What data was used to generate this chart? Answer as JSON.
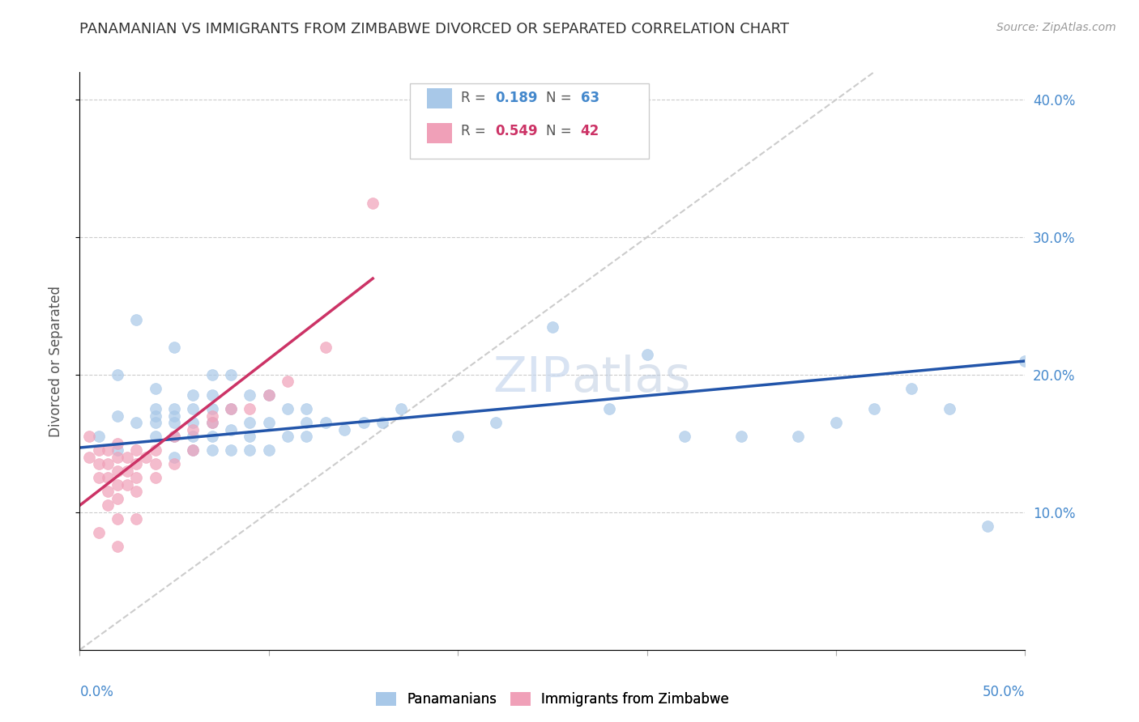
{
  "title": "PANAMANIAN VS IMMIGRANTS FROM ZIMBABWE DIVORCED OR SEPARATED CORRELATION CHART",
  "source": "Source: ZipAtlas.com",
  "ylabel": "Divorced or Separated",
  "blue_color": "#a8c8e8",
  "pink_color": "#f0a0b8",
  "blue_line_color": "#2255aa",
  "pink_line_color": "#cc3366",
  "diag_line_color": "#cccccc",
  "xlim": [
    0.0,
    0.5
  ],
  "ylim": [
    0.0,
    0.42
  ],
  "yticks": [
    0.1,
    0.2,
    0.3,
    0.4
  ],
  "ytick_labels": [
    "10.0%",
    "20.0%",
    "30.0%",
    "40.0%"
  ],
  "xtick_labels": [
    "0.0%",
    "50.0%"
  ],
  "legend_r_blue": "0.189",
  "legend_n_blue": "63",
  "legend_r_pink": "0.549",
  "legend_n_pink": "42",
  "blue_scatter_x": [
    0.01,
    0.02,
    0.02,
    0.02,
    0.03,
    0.03,
    0.04,
    0.04,
    0.04,
    0.04,
    0.04,
    0.05,
    0.05,
    0.05,
    0.05,
    0.05,
    0.05,
    0.06,
    0.06,
    0.06,
    0.06,
    0.06,
    0.07,
    0.07,
    0.07,
    0.07,
    0.07,
    0.07,
    0.08,
    0.08,
    0.08,
    0.08,
    0.09,
    0.09,
    0.09,
    0.09,
    0.1,
    0.1,
    0.1,
    0.11,
    0.11,
    0.12,
    0.12,
    0.12,
    0.13,
    0.14,
    0.15,
    0.16,
    0.17,
    0.2,
    0.22,
    0.25,
    0.28,
    0.3,
    0.32,
    0.35,
    0.38,
    0.4,
    0.42,
    0.44,
    0.46,
    0.48,
    0.5
  ],
  "blue_scatter_y": [
    0.155,
    0.145,
    0.17,
    0.2,
    0.165,
    0.24,
    0.155,
    0.165,
    0.17,
    0.175,
    0.19,
    0.14,
    0.155,
    0.165,
    0.17,
    0.175,
    0.22,
    0.145,
    0.155,
    0.165,
    0.175,
    0.185,
    0.145,
    0.155,
    0.165,
    0.175,
    0.185,
    0.2,
    0.145,
    0.16,
    0.175,
    0.2,
    0.145,
    0.155,
    0.165,
    0.185,
    0.145,
    0.165,
    0.185,
    0.155,
    0.175,
    0.155,
    0.165,
    0.175,
    0.165,
    0.16,
    0.165,
    0.165,
    0.175,
    0.155,
    0.165,
    0.235,
    0.175,
    0.215,
    0.155,
    0.155,
    0.155,
    0.165,
    0.175,
    0.19,
    0.175,
    0.09,
    0.21
  ],
  "pink_scatter_x": [
    0.005,
    0.005,
    0.01,
    0.01,
    0.01,
    0.01,
    0.015,
    0.015,
    0.015,
    0.015,
    0.015,
    0.02,
    0.02,
    0.02,
    0.02,
    0.02,
    0.02,
    0.02,
    0.025,
    0.025,
    0.025,
    0.03,
    0.03,
    0.03,
    0.03,
    0.03,
    0.035,
    0.04,
    0.04,
    0.04,
    0.05,
    0.05,
    0.06,
    0.06,
    0.07,
    0.07,
    0.08,
    0.09,
    0.1,
    0.11,
    0.13,
    0.155
  ],
  "pink_scatter_y": [
    0.14,
    0.155,
    0.145,
    0.135,
    0.125,
    0.085,
    0.145,
    0.135,
    0.125,
    0.115,
    0.105,
    0.15,
    0.14,
    0.13,
    0.12,
    0.11,
    0.095,
    0.075,
    0.14,
    0.13,
    0.12,
    0.145,
    0.135,
    0.125,
    0.115,
    0.095,
    0.14,
    0.145,
    0.135,
    0.125,
    0.155,
    0.135,
    0.16,
    0.145,
    0.17,
    0.165,
    0.175,
    0.175,
    0.185,
    0.195,
    0.22,
    0.325
  ],
  "blue_line_x": [
    0.0,
    0.5
  ],
  "blue_line_y": [
    0.147,
    0.21
  ],
  "pink_line_x": [
    0.0,
    0.155
  ],
  "pink_line_y": [
    0.105,
    0.27
  ],
  "diag_line_x": [
    0.0,
    0.42
  ],
  "diag_line_y": [
    0.0,
    0.42
  ]
}
